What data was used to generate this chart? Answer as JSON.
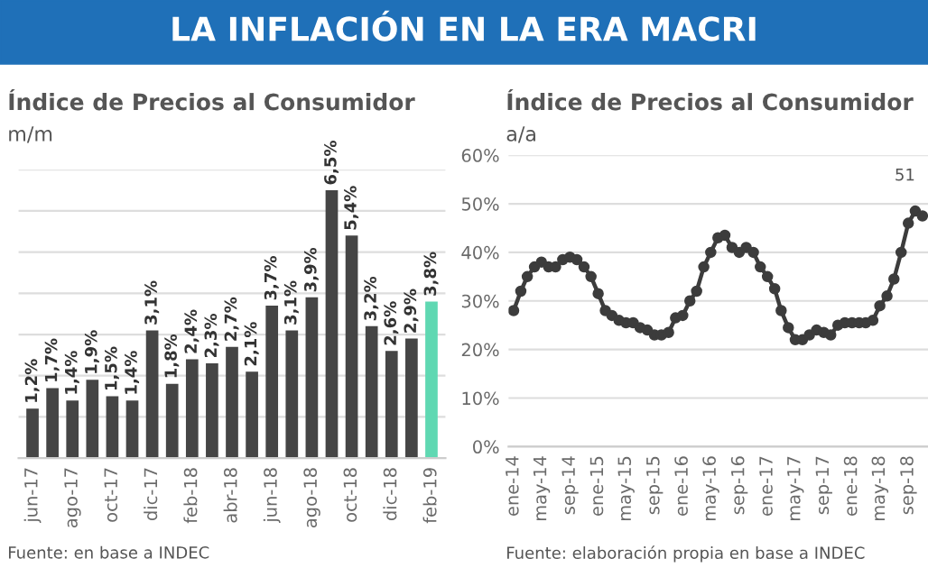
{
  "chart_data": [
    {
      "type": "bar",
      "title": "LA INFLACIÓN EN LA ERA MACRI",
      "subtitle": "Índice de Precios al Consumidor",
      "ylabel": "m/m",
      "categories": [
        "jun-17",
        null,
        "ago-17",
        null,
        "oct-17",
        null,
        "dic-17",
        null,
        "feb-18",
        null,
        "abr-18",
        null,
        "jun-18",
        null,
        "ago-18",
        null,
        "oct-18",
        null,
        "dic-18",
        null,
        "feb-19"
      ],
      "values": [
        1.2,
        1.7,
        1.4,
        1.9,
        1.5,
        1.4,
        3.1,
        1.8,
        2.4,
        2.3,
        2.7,
        2.1,
        3.7,
        3.1,
        3.9,
        6.5,
        5.4,
        3.2,
        2.6,
        2.9,
        3.8
      ],
      "value_labels": [
        "1,2%",
        "1,7%",
        "1,4%",
        "1,9%",
        "1,5%",
        "1,4%",
        "3,1%",
        "1,8%",
        "2,4%",
        "2,3%",
        "2,7%",
        "2,1%",
        "3,7%",
        "3,1%",
        "3,9%",
        "6,5%",
        "5,4%",
        "3,2%",
        "2,6%",
        "2,9%",
        "3,8%"
      ],
      "colors": [
        "#454545",
        "#454545",
        "#454545",
        "#454545",
        "#454545",
        "#454545",
        "#454545",
        "#454545",
        "#454545",
        "#454545",
        "#454545",
        "#454545",
        "#454545",
        "#454545",
        "#454545",
        "#454545",
        "#454545",
        "#454545",
        "#454545",
        "#454545",
        "#5fd8b2"
      ],
      "ylim": [
        0,
        7
      ],
      "yticks": [
        {
          "value": 0,
          "label": null
        },
        {
          "value": 1,
          "label": null
        },
        {
          "value": 2,
          "label": null
        },
        {
          "value": 3,
          "label": null
        },
        {
          "value": 4,
          "label": null
        },
        {
          "value": 5,
          "label": null
        },
        {
          "value": 6,
          "label": null
        },
        {
          "value": 7,
          "label": null
        }
      ],
      "grid": "y",
      "tick_labels": "x",
      "annotations": [
        "Fuente: en base a INDEC"
      ]
    },
    {
      "type": "line",
      "title": "Índice de Precios al Consumidor",
      "ylabel": "a/a",
      "x": [
        "2014-01",
        "2014-02",
        "2014-03",
        "2014-04",
        "2014-05",
        "2014-06",
        "2014-07",
        "2014-08",
        "2014-09",
        "2014-10",
        "2014-11",
        "2014-12",
        "2015-01",
        "2015-02",
        "2015-03",
        "2015-04",
        "2015-05",
        "2015-06",
        "2015-07",
        "2015-08",
        "2015-09",
        "2015-10",
        "2015-11",
        "2015-12",
        "2016-01",
        "2016-02",
        "2016-03",
        "2016-04",
        "2016-05",
        "2016-06",
        "2016-07",
        "2016-08",
        "2016-09",
        "2016-10",
        "2016-11",
        "2016-12",
        "2017-01",
        "2017-02",
        "2017-03",
        "2017-04",
        "2017-05",
        "2017-06",
        "2017-07",
        "2017-08",
        "2017-09",
        "2017-10",
        "2017-11",
        "2017-12",
        "2018-01",
        "2018-02",
        "2018-03",
        "2018-04",
        "2018-05",
        "2018-06",
        "2018-07",
        "2018-08",
        "2018-09",
        "2018-10",
        "2018-11"
      ],
      "series": [
        {
          "color": "#3c3c3c",
          "values": [
            28,
            32,
            35,
            37,
            38,
            37,
            37,
            38.5,
            39,
            38.5,
            37,
            35,
            31.5,
            28,
            27,
            26,
            25.5,
            25.5,
            24.5,
            24,
            23,
            23,
            23.5,
            26.5,
            27,
            30,
            32,
            37,
            40,
            43,
            43.5,
            41,
            40,
            41,
            40,
            37,
            35,
            32.5,
            28,
            24.5,
            22,
            22,
            23,
            24,
            23.5,
            23,
            25,
            25.5,
            25.5,
            25.5,
            25.5,
            26,
            29,
            31,
            34.5,
            40,
            46,
            48.5,
            47.5
          ]
        }
      ],
      "xlim": [
        "2013-12-10",
        "2018-11-25"
      ],
      "xticks": [
        {
          "value": "2014-01",
          "label": "ene-14"
        },
        {
          "value": "2014-05",
          "label": "may-14"
        },
        {
          "value": "2014-09",
          "label": "sep-14"
        },
        {
          "value": "2015-01",
          "label": "ene-15"
        },
        {
          "value": "2015-05",
          "label": "may-15"
        },
        {
          "value": "2015-09",
          "label": "sep-15"
        },
        {
          "value": "2016-01",
          "label": "ene-16"
        },
        {
          "value": "2016-05",
          "label": "may-16"
        },
        {
          "value": "2016-09",
          "label": "sep-16"
        },
        {
          "value": "2017-01",
          "label": "ene-17"
        },
        {
          "value": "2017-05",
          "label": "may-17"
        },
        {
          "value": "2017-09",
          "label": "sep-17"
        },
        {
          "value": "2018-01",
          "label": "ene-18"
        },
        {
          "value": "2018-05",
          "label": "may-18"
        },
        {
          "value": "2018-09",
          "label": "sep-18"
        }
      ],
      "ylim": [
        0,
        60
      ],
      "yticks": [
        {
          "value": 0,
          "label": "0%"
        },
        {
          "value": 10,
          "label": "10%"
        },
        {
          "value": 20,
          "label": "20%"
        },
        {
          "value": 30,
          "label": "30%"
        },
        {
          "value": 40,
          "label": "40%"
        },
        {
          "value": 50,
          "label": "50%"
        },
        {
          "value": 60,
          "label": "60%"
        }
      ],
      "grid": "y",
      "marker": "circle",
      "line_style": "solid",
      "annotations": [
        "Fuente: elaboración propia en base a INDEC",
        {
          "text": "51",
          "x": "2018-10",
          "y": 51
        }
      ]
    }
  ]
}
